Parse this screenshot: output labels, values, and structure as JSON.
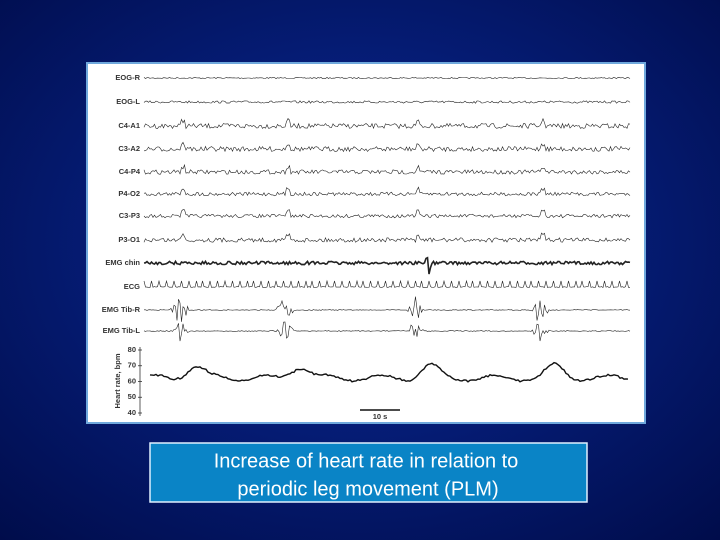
{
  "figure": {
    "channels": [
      "EOG-R",
      "EOG-L",
      "C4-A1",
      "C3-A2",
      "C4-P4",
      "P4-O2",
      "C3-P3",
      "P3-O1",
      "EMG chin",
      "ECG",
      "EMG Tib-R",
      "EMG Tib-L"
    ],
    "heart_rate_axis": {
      "label": "Heart rate, bpm",
      "ticks": [
        "80",
        "70",
        "60",
        "50",
        "40"
      ]
    },
    "scale_bar": "10 s"
  },
  "caption": [
    "Increase of heart rate in relation to",
    "periodic leg movement (PLM)"
  ]
}
